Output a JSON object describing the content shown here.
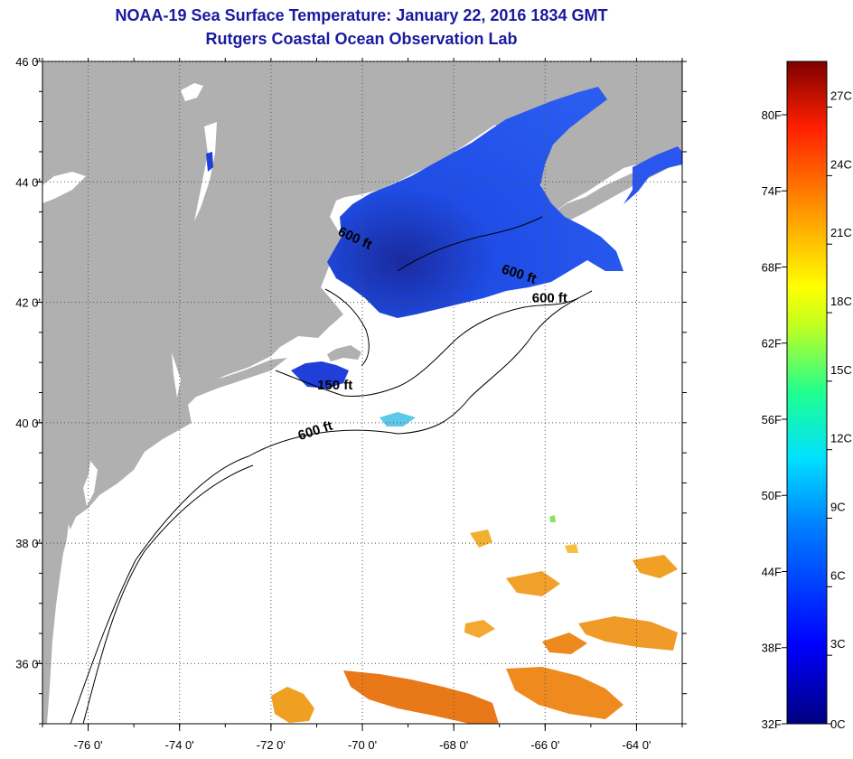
{
  "title": "NOAA-19 Sea Surface Temperature:  January 22, 2016 1834 GMT",
  "subtitle": "Rutgers Coastal Ocean Observation Lab",
  "map": {
    "lon_range": [
      -77,
      -63
    ],
    "lat_range": [
      35,
      46
    ],
    "lon_ticks": [
      -76,
      -74,
      -72,
      -70,
      -68,
      -66,
      -64
    ],
    "lat_ticks": [
      36,
      38,
      40,
      42,
      44,
      46
    ],
    "lon_labels": [
      "-76 0'",
      "-74 0'",
      "-72 0'",
      "-70 0'",
      "-68 0'",
      "-66 0'",
      "-64 0'"
    ],
    "lat_labels": [
      "36 0'",
      "38 0'",
      "40 0'",
      "42 0'",
      "44 0'",
      "46 0'"
    ],
    "land_color": "#b0b0b0",
    "contour_labels": [
      {
        "text": "600 ft",
        "lon": -70.2,
        "lat": 43.0,
        "angle": 25
      },
      {
        "text": "600 ft",
        "lon": -66.6,
        "lat": 42.4,
        "angle": 18
      },
      {
        "text": "600 ft",
        "lon": -65.9,
        "lat": 42.0,
        "angle": 0
      },
      {
        "text": "150 ft",
        "lon": -70.6,
        "lat": 40.55,
        "angle": 0
      },
      {
        "text": "600 ft",
        "lon": -71.0,
        "lat": 39.8,
        "angle": -18
      }
    ]
  },
  "colorbar": {
    "min_c": 0,
    "max_c": 29,
    "fahrenheit_labels": [
      "32F",
      "38F",
      "44F",
      "50F",
      "56F",
      "62F",
      "68F",
      "74F",
      "80F"
    ],
    "fahrenheit_values": [
      32,
      38,
      44,
      50,
      56,
      62,
      68,
      74,
      80
    ],
    "celsius_labels": [
      "0C",
      "3C",
      "6C",
      "9C",
      "12C",
      "15C",
      "18C",
      "21C",
      "24C",
      "27C"
    ],
    "celsius_values": [
      0,
      3,
      6,
      9,
      12,
      15,
      18,
      21,
      24,
      27
    ]
  }
}
